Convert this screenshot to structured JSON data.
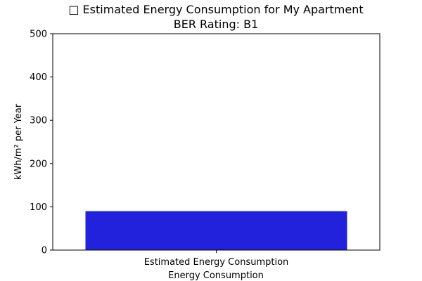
{
  "chart_data": {
    "type": "bar",
    "title": "□ Estimated Energy Consumption for My Apartment",
    "subtitle": "BER Rating: B1",
    "xlabel": "Energy Consumption",
    "ylabel": "kWh/m² per Year",
    "categories": [
      "Estimated Energy Consumption"
    ],
    "values": [
      90
    ],
    "ylim": [
      0,
      500
    ],
    "yticks": [
      0,
      100,
      200,
      300,
      400,
      500
    ],
    "bar_color": "#2222dd",
    "grid": false,
    "legend": "none"
  }
}
